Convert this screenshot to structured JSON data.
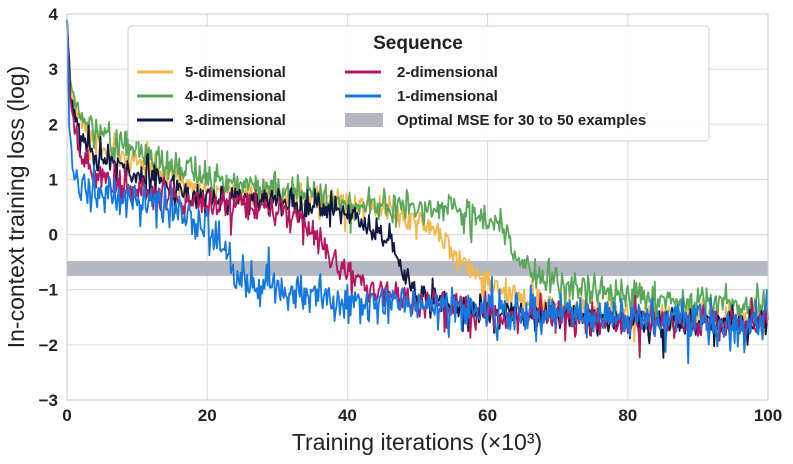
{
  "chart_data": {
    "type": "line",
    "title": "",
    "xlabel": "Training iterations (×10³)",
    "ylabel": "In-context training loss (log)",
    "xlim": [
      0,
      100
    ],
    "ylim": [
      -3,
      4
    ],
    "xticks": [
      0,
      20,
      40,
      60,
      80,
      100
    ],
    "yticks": [
      4,
      3,
      2,
      1,
      0,
      -1,
      -2,
      -3
    ],
    "xtick_labels": [
      "0",
      "20",
      "40",
      "60",
      "80",
      "100"
    ],
    "ytick_labels": [
      "4",
      "3",
      "2",
      "1",
      "0",
      "−1",
      "−2",
      "−3"
    ],
    "grid": true,
    "legend": {
      "title": "Sequence",
      "placement": "top-center",
      "entries": [
        "5-dimensional",
        "4-dimensional",
        "3-dimensional",
        "2-dimensional",
        "1-dimensional",
        "Optimal MSE for 30 to 50 examples"
      ]
    },
    "band": {
      "name": "Optimal MSE for 30 to 50 examples",
      "y_range": [
        -0.75,
        -0.48
      ],
      "color": "#b4b8c2"
    },
    "series": [
      {
        "name": "5-dimensional",
        "color": "#f2b84b",
        "noise": 0.14,
        "seed": 5,
        "x": [
          0,
          0.5,
          2,
          5,
          10,
          20,
          30,
          40,
          46,
          52,
          56,
          60,
          65,
          70,
          80,
          90,
          100
        ],
        "values": [
          3.9,
          2.6,
          2.0,
          1.6,
          1.3,
          0.8,
          0.7,
          0.55,
          0.45,
          0.1,
          -0.4,
          -0.9,
          -1.2,
          -1.3,
          -1.45,
          -1.5,
          -1.5
        ]
      },
      {
        "name": "4-dimensional",
        "color": "#5aa65a",
        "noise": 0.15,
        "seed": 4,
        "x": [
          0,
          0.5,
          2,
          5,
          10,
          20,
          30,
          40,
          50,
          58,
          62,
          64,
          68,
          75,
          85,
          100
        ],
        "values": [
          3.9,
          2.7,
          2.1,
          1.8,
          1.5,
          1.0,
          0.8,
          0.6,
          0.5,
          0.4,
          0.15,
          -0.4,
          -0.8,
          -1.0,
          -1.15,
          -1.25
        ]
      },
      {
        "name": "3-dimensional",
        "color": "#10183f",
        "noise": 0.14,
        "seed": 3,
        "x": [
          0,
          0.5,
          2,
          5,
          10,
          20,
          30,
          38,
          42,
          46,
          48,
          52,
          60,
          70,
          80,
          100
        ],
        "values": [
          3.9,
          2.5,
          1.8,
          1.4,
          1.1,
          0.7,
          0.6,
          0.45,
          0.25,
          -0.1,
          -0.8,
          -1.2,
          -1.4,
          -1.5,
          -1.55,
          -1.6
        ]
      },
      {
        "name": "2-dimensional",
        "color": "#b5165f",
        "noise": 0.15,
        "seed": 2,
        "x": [
          0,
          0.5,
          2,
          5,
          10,
          20,
          30,
          35,
          38,
          42,
          50,
          60,
          70,
          80,
          100
        ],
        "values": [
          3.9,
          2.3,
          1.4,
          1.0,
          0.8,
          0.55,
          0.45,
          0.1,
          -0.5,
          -0.9,
          -1.2,
          -1.4,
          -1.5,
          -1.6,
          -1.6
        ]
      },
      {
        "name": "1-dimensional",
        "color": "#1478de",
        "noise": 0.2,
        "seed": 1,
        "x": [
          0,
          0.3,
          1,
          3,
          10,
          18,
          22,
          24,
          28,
          40,
          60,
          80,
          100
        ],
        "values": [
          3.9,
          2.0,
          1.0,
          0.8,
          0.6,
          0.3,
          -0.1,
          -0.8,
          -1.0,
          -1.2,
          -1.35,
          -1.5,
          -1.55
        ]
      }
    ]
  }
}
